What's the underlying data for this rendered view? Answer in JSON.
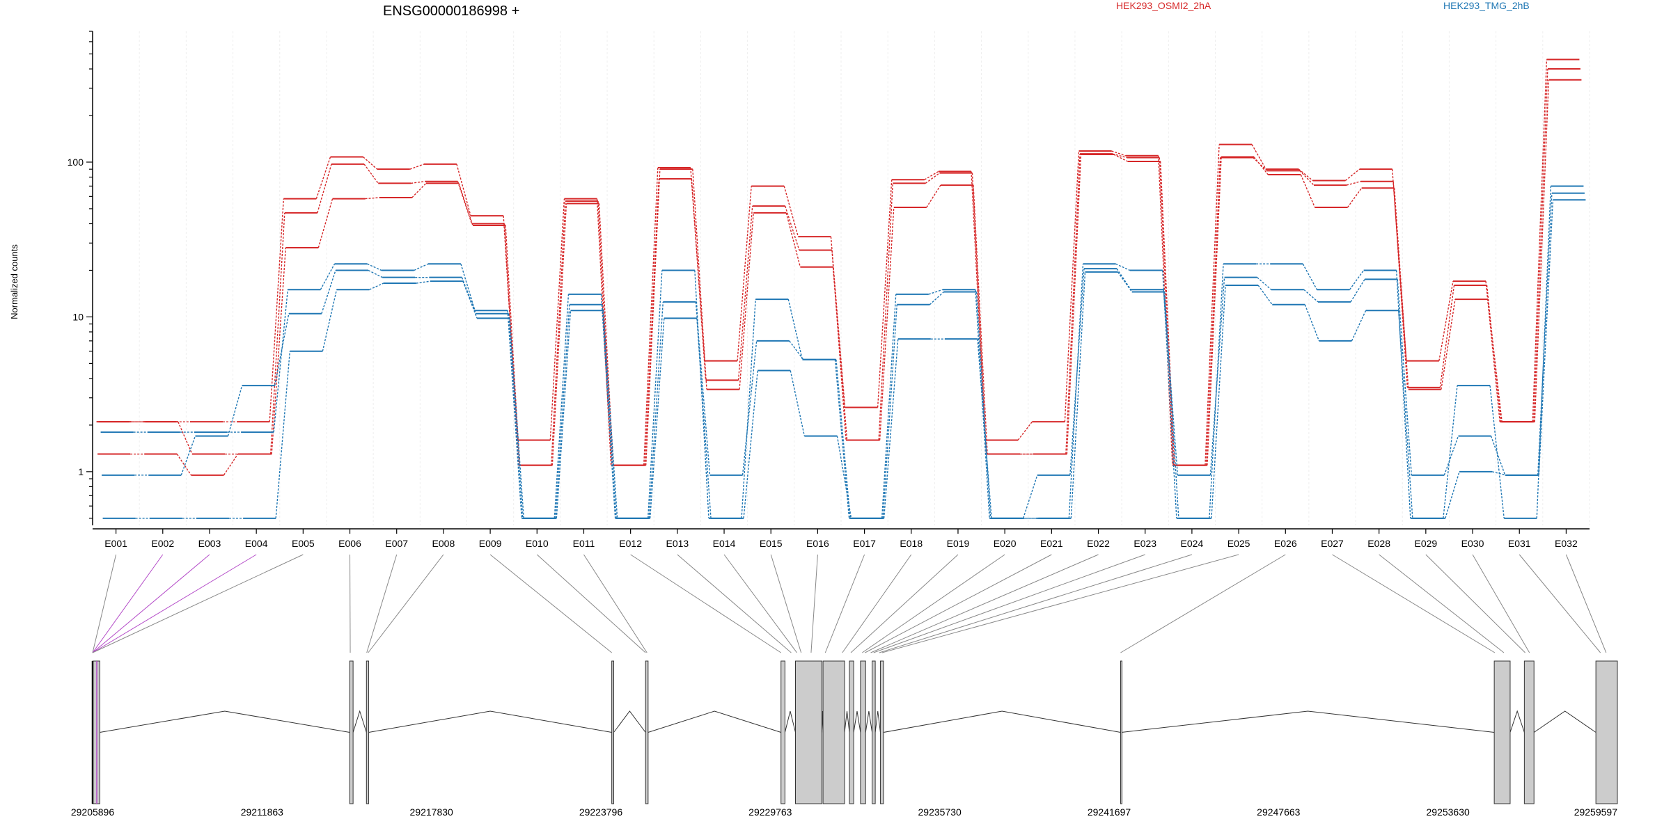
{
  "chart_data": {
    "type": "line",
    "title": "ENSG00000186998 +",
    "ylabel": "Normalized counts",
    "yscale": "log",
    "ylim": [
      0.45,
      700
    ],
    "yticks": [
      1,
      10,
      100
    ],
    "ytick_labels": [
      "1",
      "10",
      "100"
    ],
    "grid": true,
    "legend_position": "top",
    "categories": [
      "E001",
      "E002",
      "E003",
      "E004",
      "E005",
      "E006",
      "E007",
      "E008",
      "E009",
      "E010",
      "E011",
      "E012",
      "E013",
      "E014",
      "E015",
      "E016",
      "E017",
      "E018",
      "E019",
      "E020",
      "E021",
      "E022",
      "E023",
      "E024",
      "E025",
      "E026",
      "E027",
      "E028",
      "E029",
      "E030",
      "E031",
      "E032"
    ],
    "series": [
      {
        "name": "HEK293_OSMI2_2hA",
        "group": "HEK293_OSMI2_2hA",
        "color": "#d62728",
        "values": [
          2.1,
          2.1,
          2.1,
          2.1,
          58,
          108,
          90,
          97,
          45,
          1.6,
          58,
          1.1,
          92,
          5.2,
          70,
          33,
          2.6,
          77,
          87,
          1.6,
          2.1,
          118,
          110,
          1.1,
          130,
          90,
          76,
          90,
          5.2,
          17,
          2.1,
          460
        ]
      },
      {
        "name": "",
        "group": "HEK293_OSMI2_2hA",
        "color": "#d62728",
        "values": [
          1.3,
          1.3,
          0.95,
          1.3,
          47,
          97,
          73,
          75,
          40,
          1.1,
          56,
          1.1,
          78,
          3.9,
          52,
          27,
          1.6,
          73,
          85,
          1.3,
          1.3,
          113,
          107,
          1.1,
          107,
          88,
          71,
          75,
          3.5,
          16,
          2.1,
          400
        ]
      },
      {
        "name": "",
        "group": "HEK293_OSMI2_2hA",
        "color": "#d62728",
        "values": [
          2.1,
          2.1,
          1.3,
          1.3,
          28,
          58,
          59,
          73,
          39,
          1.1,
          54,
          1.1,
          90,
          3.4,
          47,
          21,
          1.6,
          51,
          71,
          1.3,
          1.3,
          112,
          101,
          1.1,
          108,
          83,
          51,
          68,
          3.4,
          13,
          2.1,
          340
        ]
      },
      {
        "name": "HEK293_TMG_2hB",
        "group": "HEK293_TMG_2hB",
        "color": "#1f77b4",
        "values": [
          1.8,
          1.8,
          1.8,
          1.8,
          15,
          22,
          20,
          22,
          11,
          0.5,
          14,
          0.5,
          20,
          0.5,
          13,
          5.3,
          0.5,
          14,
          15,
          0.5,
          0.5,
          22,
          20,
          0.5,
          22,
          22,
          15,
          20,
          0.5,
          3.6,
          0.5,
          70
        ]
      },
      {
        "name": "",
        "group": "HEK293_TMG_2hB",
        "color": "#1f77b4",
        "values": [
          0.95,
          0.95,
          1.7,
          3.6,
          10.5,
          20,
          18,
          18,
          10.5,
          0.5,
          12,
          0.5,
          12.5,
          0.95,
          7,
          5.3,
          0.5,
          12,
          14.5,
          0.5,
          0.95,
          20.5,
          15,
          0.95,
          18,
          15,
          12.5,
          17.5,
          0.95,
          1.7,
          0.95,
          63
        ]
      },
      {
        "name": "",
        "group": "HEK293_TMG_2hB",
        "color": "#1f77b4",
        "values": [
          0.5,
          0.5,
          0.5,
          0.5,
          6,
          15,
          16.5,
          17,
          9.8,
          0.5,
          11,
          0.5,
          9.8,
          0.5,
          4.5,
          1.7,
          0.5,
          7.2,
          7.2,
          0.5,
          0.5,
          19.5,
          14.5,
          0.5,
          16,
          12,
          7,
          11,
          0.5,
          1,
          0.95,
          57
        ]
      }
    ],
    "genome": {
      "coords": [
        29205896,
        29211863,
        29217830,
        29223796,
        29229763,
        29235730,
        29241697,
        29247663,
        29253630,
        29259597
      ],
      "coord_labels": [
        "29205896",
        "29211863",
        "29217830",
        "29223796",
        "29229763",
        "29235730",
        "29241697",
        "29247663",
        "29253630",
        "29259597"
      ],
      "exons": [
        [
          29205896,
          29206150
        ],
        [
          29214950,
          29215070
        ],
        [
          29215540,
          29215620
        ],
        [
          29224180,
          29224250
        ],
        [
          29225370,
          29225460
        ],
        [
          29230140,
          29230280
        ],
        [
          29230650,
          29231580
        ],
        [
          29231620,
          29232380
        ],
        [
          29232550,
          29232700
        ],
        [
          29232940,
          29233120
        ],
        [
          29233350,
          29233460
        ],
        [
          29233640,
          29233750
        ],
        [
          29242100,
          29242130
        ],
        [
          29255260,
          29255820
        ],
        [
          29256320,
          29256660
        ],
        [
          29258840,
          29259597
        ]
      ],
      "exon_bin_anchors": [
        29205896,
        29205896,
        29205896,
        29205896,
        29205896,
        29214970,
        29215550,
        29215600,
        29224180,
        29225370,
        29225420,
        29230140,
        29230500,
        29230700,
        29230850,
        29231200,
        29231700,
        29232300,
        29232600,
        29233000,
        29233100,
        29233300,
        29233400,
        29233600,
        29233700,
        29242100,
        29255280,
        29255600,
        29256350,
        29256500,
        29259000,
        29259200
      ],
      "highlight_color": "#b44bc8",
      "highlight_bins": [
        1,
        2,
        3
      ]
    }
  }
}
